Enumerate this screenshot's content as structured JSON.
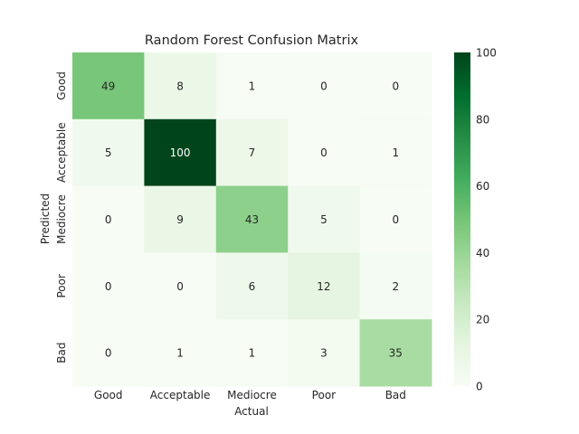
{
  "chart_data": {
    "type": "heatmap",
    "title": "Random Forest Confusion Matrix",
    "xlabel": "Actual",
    "ylabel": "Predicted",
    "x_categories": [
      "Good",
      "Acceptable",
      "Mediocre",
      "Poor",
      "Bad"
    ],
    "y_categories": [
      "Good",
      "Acceptable",
      "Mediocre",
      "Poor",
      "Bad"
    ],
    "values": [
      [
        49,
        8,
        1,
        0,
        0
      ],
      [
        5,
        100,
        7,
        0,
        1
      ],
      [
        0,
        9,
        43,
        5,
        0
      ],
      [
        0,
        0,
        6,
        12,
        2
      ],
      [
        0,
        1,
        1,
        3,
        35
      ]
    ],
    "colorbar": {
      "range": [
        0,
        100
      ],
      "ticks": [
        "0",
        "20",
        "40",
        "60",
        "80",
        "100"
      ],
      "colormap": "Greens",
      "colors": [
        "#f7fcf5",
        "#e5f5e0",
        "#c7e9c0",
        "#a1d99b",
        "#74c476",
        "#41ab5d",
        "#238b45",
        "#006d2c",
        "#00441b"
      ]
    }
  }
}
